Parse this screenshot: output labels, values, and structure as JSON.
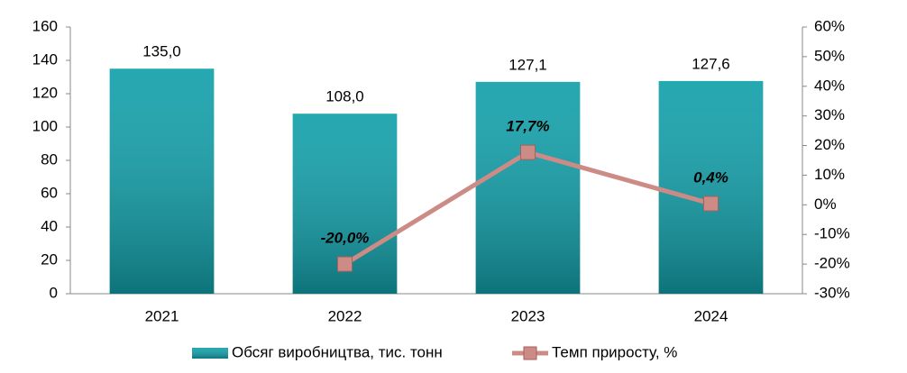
{
  "chart_data": {
    "type": "bar",
    "categories": [
      "2021",
      "2022",
      "2023",
      "2024"
    ],
    "series": [
      {
        "name": "Обсяг виробництва, тис. тонн",
        "color": "#13a0aa",
        "values": [
          135.0,
          108.0,
          127.1,
          127.6
        ],
        "value_labels": [
          "135,0",
          "108,0",
          "127,1",
          "127,6"
        ]
      },
      {
        "name": "Темп приросту, %",
        "type": "line",
        "axis": "y2",
        "color": "#cd8b86",
        "values": [
          null,
          -20.0,
          17.7,
          0.4
        ],
        "value_labels": [
          null,
          "-20,0%",
          "17,7%",
          "0,4%"
        ]
      }
    ],
    "ylim": [
      0,
      160
    ],
    "yticks": [
      0,
      20,
      40,
      60,
      80,
      100,
      120,
      140,
      160
    ],
    "y2lim": [
      -30,
      60
    ],
    "y2ticks": [
      {
        "value": -30,
        "label": "-30%"
      },
      {
        "value": -20,
        "label": "-20%"
      },
      {
        "value": -10,
        "label": "-10%"
      },
      {
        "value": 0,
        "label": "0%"
      },
      {
        "value": 10,
        "label": "10%"
      },
      {
        "value": 20,
        "label": "20%"
      },
      {
        "value": 30,
        "label": "30%"
      },
      {
        "value": 40,
        "label": "40%"
      },
      {
        "value": 50,
        "label": "50%"
      },
      {
        "value": 60,
        "label": "60%"
      }
    ],
    "grid": false,
    "legend": "bottom"
  }
}
